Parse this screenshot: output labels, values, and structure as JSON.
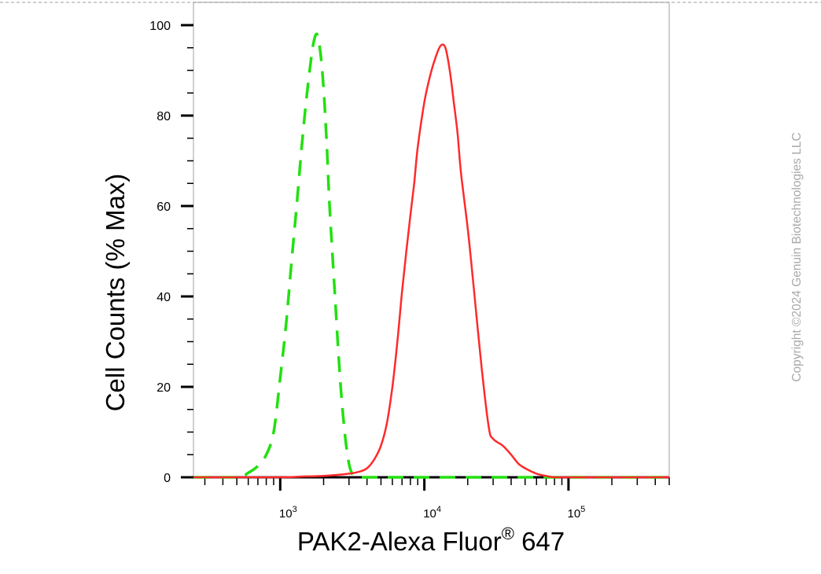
{
  "chart_data": {
    "type": "line",
    "xlabel": "PAK2-Alexa Fluor",
    "xlabel_superscript": "®",
    "xlabel_suffix": " 647",
    "ylabel": "Cell Counts (% Max)",
    "xscale": "log",
    "xlim": [
      250,
      500000
    ],
    "ylim": [
      0,
      105
    ],
    "y_ticks": [
      0,
      20,
      40,
      60,
      80,
      100
    ],
    "x_tick_labels": [
      {
        "value": 1000,
        "base": "10",
        "exp": "3"
      },
      {
        "value": 10000,
        "base": "10",
        "exp": "4"
      },
      {
        "value": 100000,
        "base": "10",
        "exp": "5"
      }
    ],
    "series": [
      {
        "style": "dashed",
        "color": "#22e00f",
        "x": [
          250,
          500,
          600,
          700,
          800,
          900,
          1000,
          1100,
          1200,
          1300,
          1400,
          1500,
          1600,
          1700,
          1800,
          1900,
          2000,
          2100,
          2200,
          2400,
          2600,
          2800,
          3000,
          3200,
          3500,
          5000,
          10000,
          100000,
          500000
        ],
        "y": [
          0,
          0,
          1,
          2.5,
          5,
          10,
          22,
          34,
          48,
          60,
          72,
          82,
          90,
          96,
          98,
          94,
          86,
          74,
          60,
          40,
          22,
          10,
          3,
          0.5,
          0,
          0,
          0,
          0,
          0
        ]
      },
      {
        "style": "solid",
        "color": "#ff2a2a",
        "x": [
          250,
          1000,
          1500,
          2000,
          3000,
          3500,
          4000,
          4500,
          5000,
          5500,
          6000,
          6500,
          7000,
          7500,
          8000,
          8500,
          9000,
          10000,
          11000,
          12000,
          13000,
          14000,
          15000,
          16000,
          17000,
          18000,
          20000,
          22000,
          25000,
          28000,
          30000,
          35000,
          40000,
          45000,
          50000,
          60000,
          70000,
          80000,
          100000,
          500000
        ],
        "y": [
          0,
          0,
          0.2,
          0.3,
          0.8,
          1.2,
          2,
          4,
          7,
          12,
          20,
          30,
          41,
          50,
          58,
          65,
          73,
          83,
          89,
          93,
          95.5,
          95,
          90,
          83,
          76,
          67,
          55,
          42,
          24,
          11,
          8.5,
          7,
          5,
          3,
          2,
          0.8,
          0.3,
          0,
          0,
          0
        ]
      }
    ],
    "grid": false,
    "legend": "none"
  },
  "watermark": "Copyright ©2024 Genuin Biotechnologies LLC"
}
